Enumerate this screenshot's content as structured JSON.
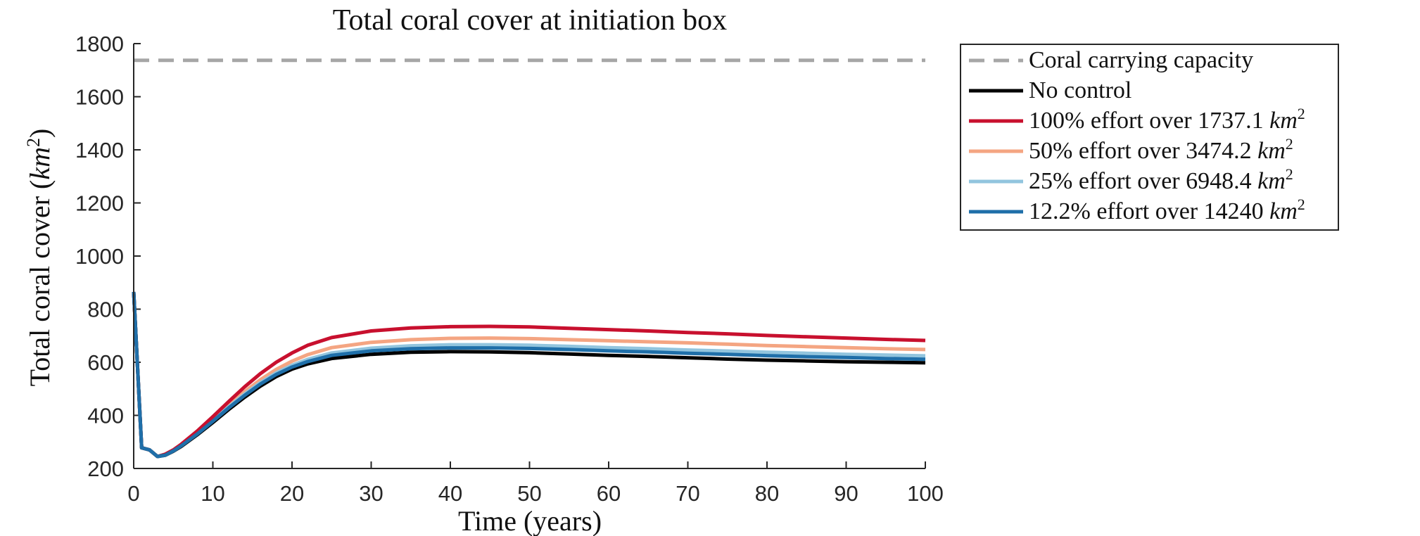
{
  "chart_data": {
    "type": "line",
    "title": "Total coral cover at initiation box",
    "xlabel": "Time (years)",
    "ylabel": "Total coral cover (km²)",
    "xlim": [
      0,
      100
    ],
    "ylim": [
      200,
      1800
    ],
    "xticks": [
      0,
      10,
      20,
      30,
      40,
      50,
      60,
      70,
      80,
      90,
      100
    ],
    "yticks": [
      200,
      400,
      600,
      800,
      1000,
      1200,
      1400,
      1600,
      1800
    ],
    "grid": false,
    "legend_position": "outside-right-top",
    "x": [
      0,
      1,
      2,
      3,
      4,
      5,
      6,
      8,
      10,
      12,
      14,
      16,
      18,
      20,
      22,
      25,
      30,
      35,
      40,
      45,
      50,
      55,
      60,
      65,
      70,
      75,
      80,
      85,
      90,
      95,
      100
    ],
    "series": [
      {
        "name": "Coral carrying capacity",
        "color": "#a6a6a6",
        "style": "dashed",
        "values": [
          1737.1,
          1737.1,
          1737.1,
          1737.1,
          1737.1,
          1737.1,
          1737.1,
          1737.1,
          1737.1,
          1737.1,
          1737.1,
          1737.1,
          1737.1,
          1737.1,
          1737.1,
          1737.1,
          1737.1,
          1737.1,
          1737.1,
          1737.1,
          1737.1,
          1737.1,
          1737.1,
          1737.1,
          1737.1,
          1737.1,
          1737.1,
          1737.1,
          1737.1,
          1737.1,
          1737.1
        ]
      },
      {
        "name": "No control",
        "color": "#000000",
        "style": "solid",
        "values": [
          865,
          278,
          270,
          245,
          250,
          265,
          283,
          326,
          373,
          422,
          468,
          510,
          546,
          574,
          594,
          614,
          630,
          638,
          640,
          639,
          636,
          631,
          626,
          622,
          617,
          612,
          608,
          605,
          602,
          600,
          598
        ]
      },
      {
        "name": "100% effort over 1737.1 km²",
        "name_main": "100% effort over 1737.1 ",
        "name_unit": "km",
        "name_sup": "2",
        "color": "#c8102e",
        "style": "solid",
        "values": [
          865,
          278,
          270,
          245,
          254,
          270,
          291,
          340,
          395,
          452,
          507,
          557,
          600,
          635,
          664,
          693,
          718,
          729,
          734,
          735,
          733,
          728,
          723,
          718,
          712,
          707,
          701,
          696,
          691,
          686,
          682
        ]
      },
      {
        "name": "50% effort over 3474.2 km²",
        "name_main": "50% effort over 3474.2 ",
        "name_unit": "km",
        "name_sup": "2",
        "color": "#f4a582",
        "style": "solid",
        "values": [
          865,
          278,
          270,
          245,
          252,
          268,
          288,
          334,
          386,
          439,
          489,
          534,
          573,
          604,
          629,
          655,
          675,
          685,
          690,
          691,
          689,
          685,
          681,
          677,
          673,
          668,
          663,
          659,
          655,
          651,
          648
        ]
      },
      {
        "name": "25% effort over 6948.4 km²",
        "name_main": "25% effort over 6948.4 ",
        "name_unit": "km",
        "name_sup": "2",
        "color": "#92c5de",
        "style": "solid",
        "values": [
          865,
          278,
          270,
          245,
          251,
          267,
          286,
          331,
          381,
          432,
          480,
          523,
          560,
          589,
          611,
          635,
          653,
          662,
          666,
          666,
          664,
          660,
          655,
          651,
          646,
          642,
          638,
          634,
          630,
          627,
          624
        ]
      },
      {
        "name": "12.2% effort over 14240 km²",
        "name_main": "12.2% effort over 14240 ",
        "name_unit": "km",
        "name_sup": "2",
        "color": "#1f6fa9",
        "style": "solid",
        "values": [
          865,
          278,
          270,
          245,
          250,
          266,
          285,
          329,
          378,
          428,
          475,
          518,
          554,
          582,
          603,
          626,
          643,
          651,
          654,
          654,
          652,
          648,
          643,
          639,
          634,
          630,
          625,
          621,
          618,
          614,
          611
        ]
      }
    ]
  }
}
